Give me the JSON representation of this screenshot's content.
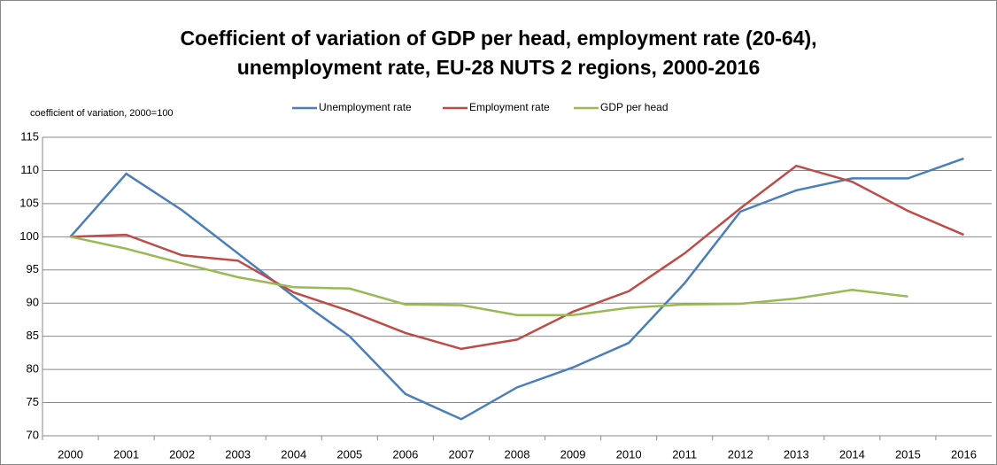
{
  "chart_data": {
    "type": "line",
    "title": [
      "Coefficient of variation of GDP per head, employment rate (20-64),",
      "unemployment rate, EU-28 NUTS 2 regions, 2000-2016"
    ],
    "y_label": "coefficient of variation, 2000=100",
    "categories": [
      "2000",
      "2001",
      "2002",
      "2003",
      "2004",
      "2005",
      "2006",
      "2007",
      "2008",
      "2009",
      "2010",
      "2011",
      "2012",
      "2013",
      "2014",
      "2015",
      "2016"
    ],
    "series": [
      {
        "name": "Unemployment rate",
        "color": "#4a7ebb",
        "values": [
          100,
          109.5,
          104,
          97.5,
          91,
          85,
          76.3,
          72.5,
          77.3,
          80.3,
          84,
          93,
          103.8,
          107,
          108.8,
          108.8,
          111.8
        ]
      },
      {
        "name": "Employment rate",
        "color": "#be4b48",
        "values": [
          100,
          100.3,
          97.2,
          96.4,
          91.6,
          88.8,
          85.5,
          83.1,
          84.5,
          88.7,
          91.8,
          97.5,
          104.3,
          110.7,
          108.3,
          103.9,
          100.3
        ]
      },
      {
        "name": "GDP per head",
        "color": "#98b954",
        "values": [
          100,
          98.2,
          96,
          93.9,
          92.4,
          92.2,
          89.8,
          89.7,
          88.2,
          88.2,
          89.3,
          89.8,
          89.9,
          90.7,
          92,
          91,
          null
        ]
      }
    ],
    "ylim": [
      70,
      115
    ],
    "yticks": [
      70,
      75,
      80,
      85,
      90,
      95,
      100,
      105,
      110,
      115
    ],
    "grid": true,
    "legend": "top"
  }
}
